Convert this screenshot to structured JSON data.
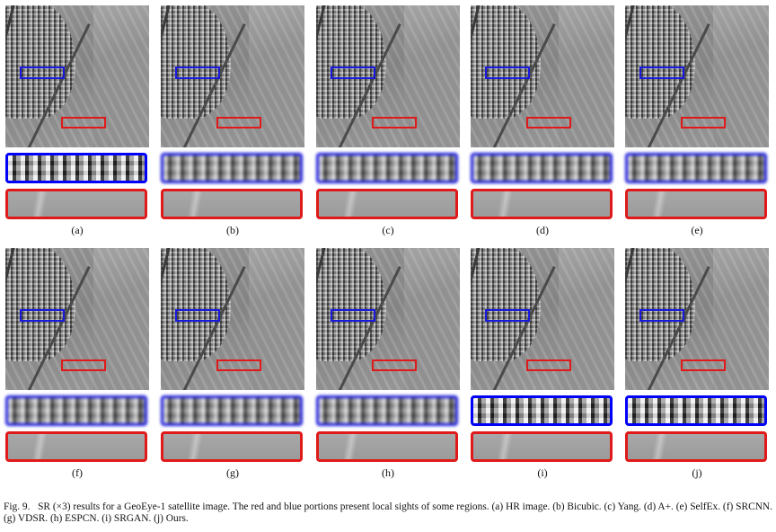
{
  "panels": [
    {
      "label": "(a)"
    },
    {
      "label": "(b)"
    },
    {
      "label": "(c)"
    },
    {
      "label": "(d)"
    },
    {
      "label": "(e)"
    },
    {
      "label": "(f)"
    },
    {
      "label": "(g)"
    },
    {
      "label": "(h)"
    },
    {
      "label": "(i)"
    },
    {
      "label": "(j)"
    }
  ],
  "caption": {
    "prefix": "Fig. 9.",
    "text": "SR (×3) results for a GeoEye-1 satellite image. The red and blue portions present local sights of some regions. (a) HR image. (b) Bicubic. (c) Yang. (d) A+. (e) SelfEx. (f) SRCNN. (g) VDSR. (h) ESPCN. (i) SRGAN. (j) Ours."
  },
  "colors": {
    "zoom_blue": "#1a1adf",
    "zoom_red": "#e01a1a"
  }
}
